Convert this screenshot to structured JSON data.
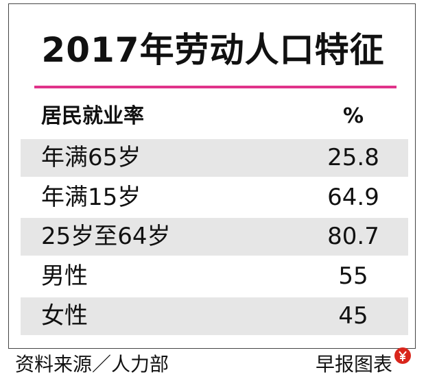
{
  "title": "2017年劳动人口特征",
  "table": {
    "header": [
      "居民就业率",
      "%"
    ],
    "rows": [
      [
        "年满65岁",
        25.8
      ],
      [
        "年满15岁",
        64.9
      ],
      [
        "25岁至64岁",
        80.7
      ],
      [
        "男性",
        55
      ],
      [
        "女性",
        45
      ]
    ]
  },
  "footer": {
    "source": "资料来源／人力部",
    "credit": "早报图表"
  }
}
